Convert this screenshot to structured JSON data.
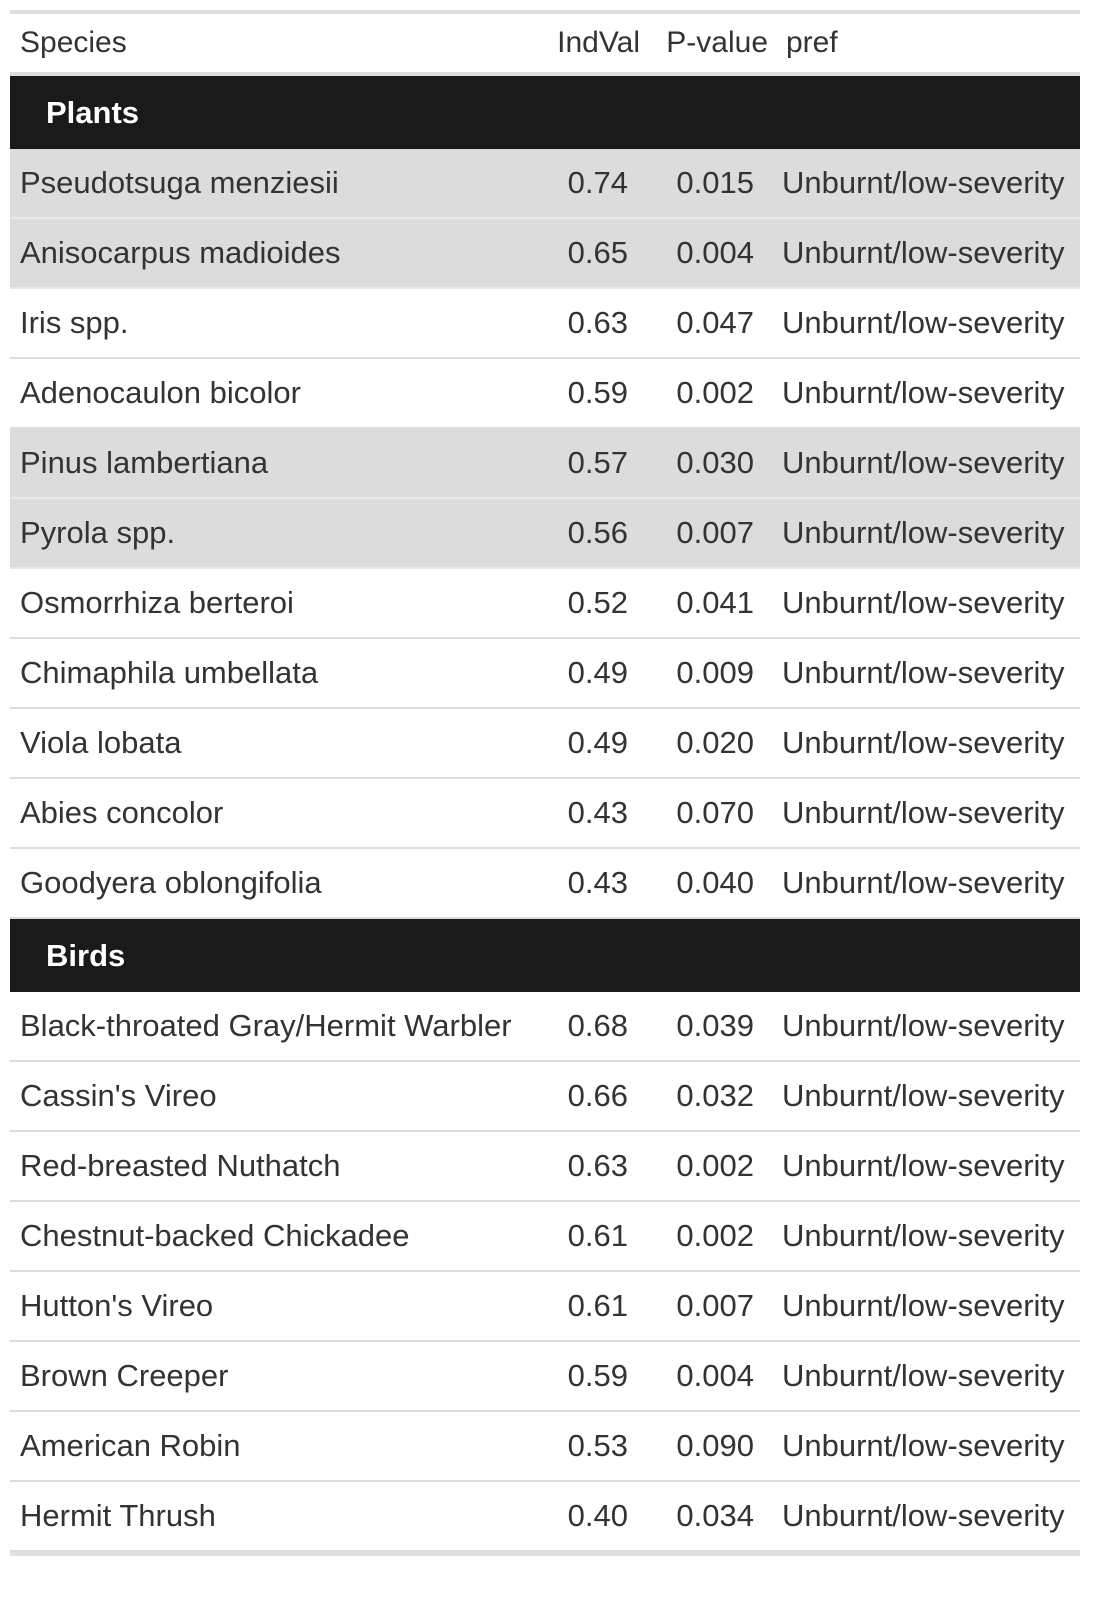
{
  "columns": {
    "species": "Species",
    "indval": "IndVal",
    "pvalue": "P-value",
    "pref": "pref"
  },
  "groups": [
    {
      "label": "Plants",
      "rows": [
        {
          "species": "Pseudotsuga menziesii",
          "indval": "0.74",
          "pvalue": "0.015",
          "pref": "Unburnt/low-severity",
          "shaded": true
        },
        {
          "species": "Anisocarpus madioides",
          "indval": "0.65",
          "pvalue": "0.004",
          "pref": "Unburnt/low-severity",
          "shaded": true
        },
        {
          "species": "Iris spp.",
          "indval": "0.63",
          "pvalue": "0.047",
          "pref": "Unburnt/low-severity",
          "shaded": false
        },
        {
          "species": "Adenocaulon bicolor",
          "indval": "0.59",
          "pvalue": "0.002",
          "pref": "Unburnt/low-severity",
          "shaded": false
        },
        {
          "species": "Pinus lambertiana",
          "indval": "0.57",
          "pvalue": "0.030",
          "pref": "Unburnt/low-severity",
          "shaded": true
        },
        {
          "species": "Pyrola spp.",
          "indval": "0.56",
          "pvalue": "0.007",
          "pref": "Unburnt/low-severity",
          "shaded": true
        },
        {
          "species": "Osmorrhiza berteroi",
          "indval": "0.52",
          "pvalue": "0.041",
          "pref": "Unburnt/low-severity",
          "shaded": false
        },
        {
          "species": "Chimaphila umbellata",
          "indval": "0.49",
          "pvalue": "0.009",
          "pref": "Unburnt/low-severity",
          "shaded": false
        },
        {
          "species": "Viola lobata",
          "indval": "0.49",
          "pvalue": "0.020",
          "pref": "Unburnt/low-severity",
          "shaded": false
        },
        {
          "species": "Abies concolor",
          "indval": "0.43",
          "pvalue": "0.070",
          "pref": "Unburnt/low-severity",
          "shaded": false
        },
        {
          "species": "Goodyera oblongifolia",
          "indval": "0.43",
          "pvalue": "0.040",
          "pref": "Unburnt/low-severity",
          "shaded": false
        }
      ]
    },
    {
      "label": "Birds",
      "rows": [
        {
          "species": "Black-throated Gray/Hermit Warbler",
          "indval": "0.68",
          "pvalue": "0.039",
          "pref": "Unburnt/low-severity",
          "shaded": false
        },
        {
          "species": "Cassin's Vireo",
          "indval": "0.66",
          "pvalue": "0.032",
          "pref": "Unburnt/low-severity",
          "shaded": false
        },
        {
          "species": "Red-breasted Nuthatch",
          "indval": "0.63",
          "pvalue": "0.002",
          "pref": "Unburnt/low-severity",
          "shaded": false
        },
        {
          "species": "Chestnut-backed Chickadee",
          "indval": "0.61",
          "pvalue": "0.002",
          "pref": "Unburnt/low-severity",
          "shaded": false
        },
        {
          "species": "Hutton's Vireo",
          "indval": "0.61",
          "pvalue": "0.007",
          "pref": "Unburnt/low-severity",
          "shaded": false
        },
        {
          "species": "Brown Creeper",
          "indval": "0.59",
          "pvalue": "0.004",
          "pref": "Unburnt/low-severity",
          "shaded": false
        },
        {
          "species": "American Robin",
          "indval": "0.53",
          "pvalue": "0.090",
          "pref": "Unburnt/low-severity",
          "shaded": false
        },
        {
          "species": "Hermit Thrush",
          "indval": "0.40",
          "pvalue": "0.034",
          "pref": "Unburnt/low-severity",
          "shaded": false
        }
      ]
    }
  ]
}
